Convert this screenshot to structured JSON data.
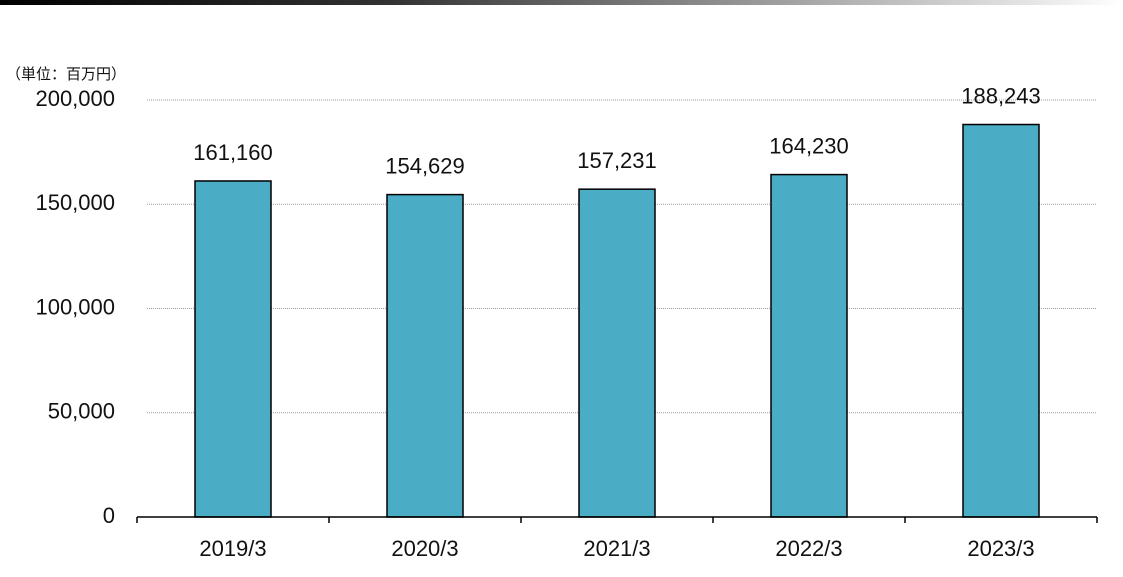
{
  "chart_data": {
    "type": "bar",
    "unit_label": "（単位：百万円）",
    "categories": [
      "2019/3",
      "2020/3",
      "2021/3",
      "2022/3",
      "2023/3"
    ],
    "values": [
      161160,
      154629,
      157231,
      164230,
      188243
    ],
    "value_labels": [
      "161,160",
      "154,629",
      "157,231",
      "164,230",
      "188,243"
    ],
    "color": "#4bacc6",
    "ylim": [
      0,
      200000
    ],
    "yticks": [
      0,
      {
        "value": 50000,
        "label": "50,000"
      },
      {
        "value": 100000,
        "label": "100,000"
      },
      {
        "value": 150000,
        "label": "150,000"
      },
      {
        "value": 200000,
        "label": "200,000"
      }
    ],
    "grid": true
  }
}
